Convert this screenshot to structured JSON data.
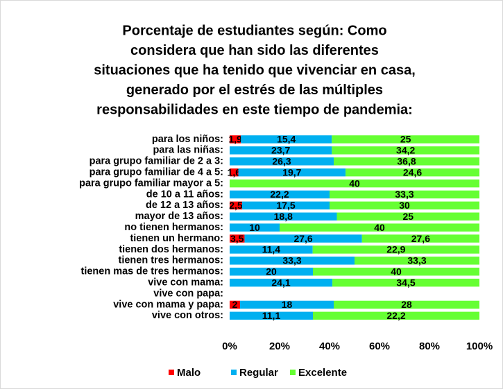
{
  "chart_data": {
    "type": "bar",
    "orientation": "horizontal",
    "stacking": "percent",
    "title": [
      "Porcentaje de estudiantes según: Como",
      "considera que han sido las diferentes",
      "situaciones que ha tenido que vivenciar en casa,",
      "generado por el estrés de las múltiples",
      "responsabilidades en este tiempo de pandemia:"
    ],
    "categories": [
      "para los niños:",
      "para las niñas:",
      "para grupo familiar de 2 a 3:",
      "para grupo familiar de 4 a 5:",
      "para grupo familiar mayor a 5:",
      "de 10 a 11 años:",
      "de 12 a 13 años:",
      "mayor de 13 años:",
      "no tienen hermanos:",
      "tienen un hermano:",
      "tienen dos hermanos:",
      "tienen tres hermanos:",
      "tienen mas de tres hermanos:",
      "vive con mama:",
      "vive con papa:",
      "vive con mama y papa:",
      "vive con otros:"
    ],
    "series": [
      {
        "name": "Malo",
        "color": "#ff0000",
        "values": [
          1.9,
          null,
          null,
          1.6,
          null,
          null,
          2.5,
          null,
          null,
          3.5,
          null,
          null,
          null,
          null,
          null,
          2,
          null
        ],
        "value_labels": [
          "1,9",
          null,
          null,
          "1,6",
          null,
          null,
          "2,5",
          null,
          null,
          "3,5",
          null,
          null,
          null,
          null,
          null,
          "2",
          null
        ]
      },
      {
        "name": "Regular",
        "color": "#00b0f0",
        "values": [
          15.4,
          23.7,
          26.3,
          19.7,
          null,
          22.2,
          17.5,
          18.8,
          10,
          27.6,
          11.4,
          33.3,
          20,
          24.1,
          null,
          18,
          11.1
        ],
        "value_labels": [
          "15,4",
          "23,7",
          "26,3",
          "19,7",
          null,
          "22,2",
          "17,5",
          "18,8",
          "10",
          "27,6",
          "11,4",
          "33,3",
          "20",
          "24,1",
          null,
          "18",
          "11,1"
        ]
      },
      {
        "name": "Excelente",
        "color": "#66ff33",
        "values": [
          25,
          34.2,
          36.8,
          24.6,
          40,
          33.3,
          30,
          25,
          40,
          27.6,
          22.9,
          33.3,
          40,
          34.5,
          null,
          28,
          22.2
        ],
        "value_labels": [
          "25",
          "34,2",
          "36,8",
          "24,6",
          "40",
          "33,3",
          "30",
          "25",
          "40",
          "27,6",
          "22,9",
          "33,3",
          "40",
          "34,5",
          null,
          "28",
          "22,2"
        ]
      }
    ],
    "xlim": [
      0,
      100
    ],
    "xticks": [
      {
        "value": 0,
        "label": "0%"
      },
      {
        "value": 20,
        "label": "20%"
      },
      {
        "value": 40,
        "label": "40%"
      },
      {
        "value": 60,
        "label": "60%"
      },
      {
        "value": 80,
        "label": "80%"
      },
      {
        "value": 100,
        "label": "100%"
      }
    ],
    "legend": "bottom",
    "grid": false
  }
}
